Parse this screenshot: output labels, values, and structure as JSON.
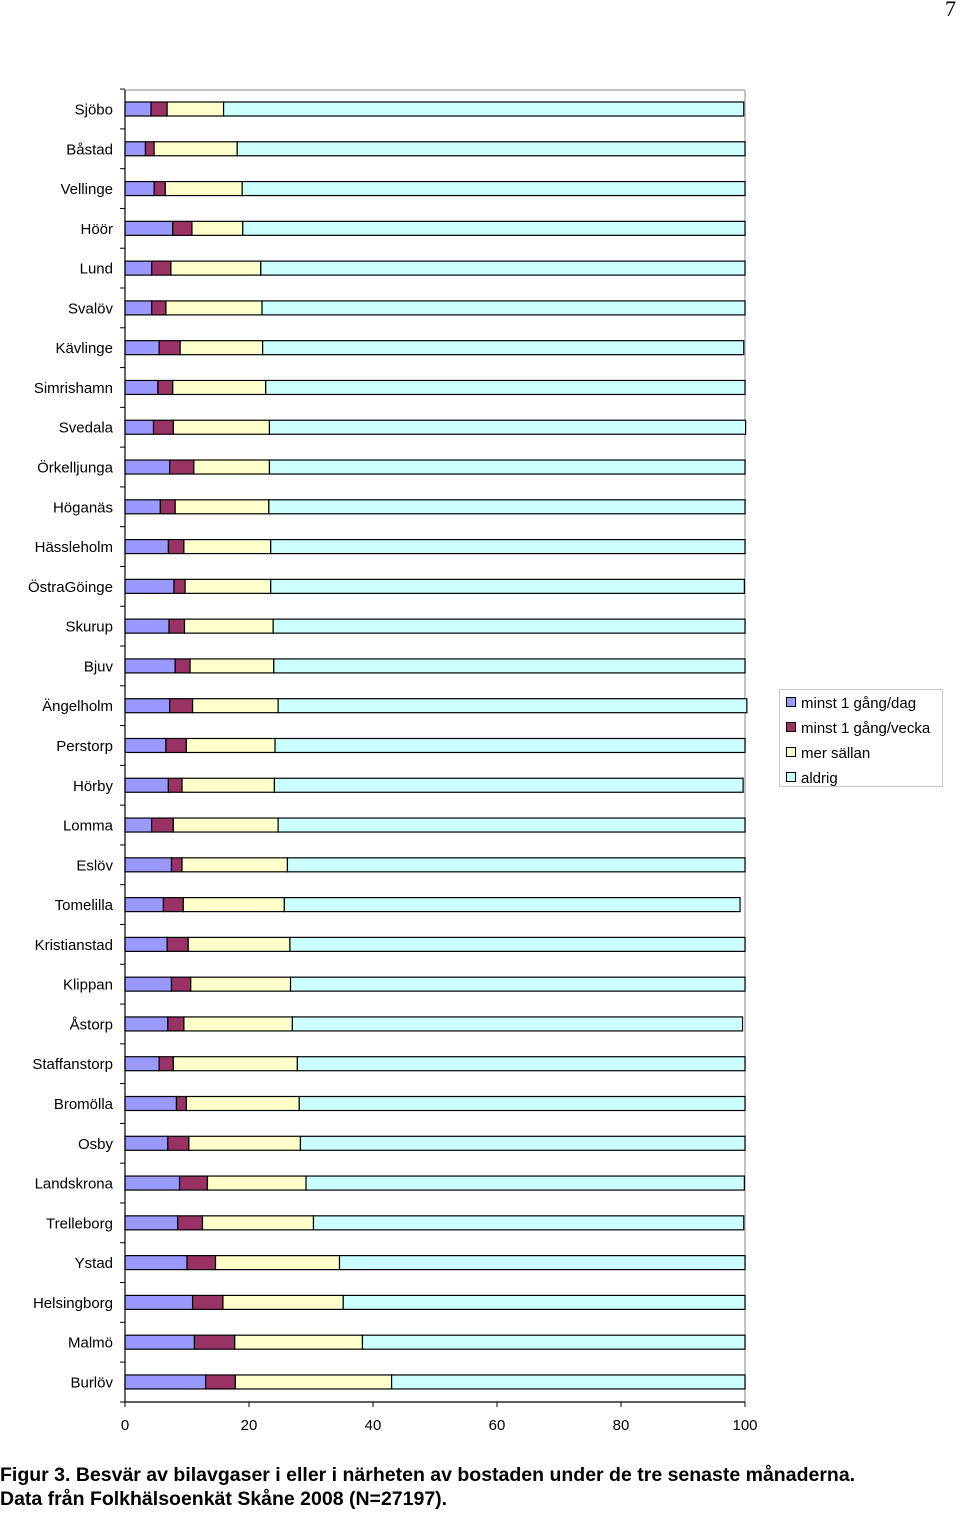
{
  "page_number": "7",
  "caption": {
    "line1": "Figur 3. Besvär av bilavgaser i eller i närheten av bostaden under de tre senaste månaderna.",
    "line2": "Data från Folkhälsoenkät Skåne 2008 (N=27197)."
  },
  "legend": {
    "items": [
      {
        "label": "minst 1 gång/dag",
        "color": "#9999ff"
      },
      {
        "label": "minst 1 gång/vecka",
        "color": "#993366"
      },
      {
        "label": "mer sällan",
        "color": "#ffffcc"
      },
      {
        "label": "aldrig",
        "color": "#ccffff"
      }
    ]
  },
  "chart_data": {
    "type": "bar",
    "orientation": "horizontal",
    "stacked": true,
    "title": "",
    "xlabel": "",
    "ylabel": "",
    "xlim": [
      0,
      100
    ],
    "xticks": [
      0,
      20,
      40,
      60,
      80,
      100
    ],
    "grid": false,
    "legend_position": "right",
    "categories": [
      "Sjöbo",
      "Båstad",
      "Vellinge",
      "Höör",
      "Lund",
      "Svalöv",
      "Kävlinge",
      "Simrishamn",
      "Svedala",
      "Örkelljunga",
      "Höganäs",
      "Hässleholm",
      "ÖstraGöinge",
      "Skurup",
      "Bjuv",
      "Ängelholm",
      "Perstorp",
      "Hörby",
      "Lomma",
      "Eslöv",
      "Tomelilla",
      "Kristianstad",
      "Klippan",
      "Åstorp",
      "Staffanstorp",
      "Bromölla",
      "Osby",
      "Landskrona",
      "Trelleborg",
      "Ystad",
      "Helsingborg",
      "Malmö",
      "Burlöv"
    ],
    "series": [
      {
        "name": "minst 1 gång/dag",
        "color": "#9999ff",
        "values": [
          4.2,
          3.3,
          4.7,
          7.7,
          4.3,
          4.3,
          5.5,
          5.3,
          4.6,
          7.2,
          5.7,
          7.0,
          7.9,
          7.1,
          8.1,
          7.2,
          6.6,
          7.0,
          4.3,
          7.5,
          6.2,
          6.8,
          7.5,
          6.9,
          5.5,
          8.3,
          6.9,
          8.8,
          8.5,
          10.0,
          10.9,
          11.2,
          13.0
        ]
      },
      {
        "name": "minst 1 gång/vecka",
        "color": "#993366",
        "values": [
          2.6,
          1.4,
          1.8,
          3.1,
          3.1,
          2.3,
          3.4,
          2.4,
          3.2,
          3.9,
          2.4,
          2.5,
          1.8,
          2.5,
          2.4,
          3.7,
          3.3,
          2.2,
          3.5,
          1.7,
          3.2,
          3.4,
          3.1,
          2.6,
          2.3,
          1.6,
          3.4,
          4.5,
          4.0,
          4.6,
          4.9,
          6.5,
          4.8
        ]
      },
      {
        "name": "mer sällan",
        "color": "#ffffcc",
        "values": [
          9.1,
          13.4,
          12.4,
          8.2,
          14.5,
          15.5,
          13.3,
          15.0,
          15.5,
          12.2,
          15.1,
          14.0,
          13.8,
          14.3,
          13.5,
          13.8,
          14.3,
          14.9,
          16.9,
          17.0,
          16.3,
          16.4,
          16.1,
          17.5,
          20.0,
          18.2,
          18.0,
          15.9,
          17.9,
          20.0,
          19.4,
          20.6,
          25.2
        ]
      },
      {
        "name": "aldrig",
        "color": "#ccffff",
        "values": [
          83.9,
          81.9,
          81.1,
          81.0,
          78.1,
          77.9,
          77.6,
          77.3,
          76.8,
          76.7,
          76.8,
          76.5,
          76.4,
          76.1,
          76.0,
          75.6,
          75.8,
          75.6,
          75.3,
          73.8,
          73.5,
          73.4,
          73.3,
          72.6,
          72.2,
          71.9,
          71.7,
          70.7,
          69.4,
          65.4,
          64.8,
          61.7,
          57.0
        ]
      }
    ]
  }
}
